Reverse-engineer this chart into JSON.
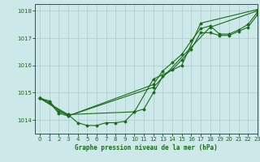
{
  "title": "Graphe pression niveau de la mer (hPa)",
  "background_color": "#cce8e8",
  "grid_color": "#aacccc",
  "line_color": "#1a6b1a",
  "xlim": [
    -0.5,
    23
  ],
  "ylim": [
    1013.5,
    1018.25
  ],
  "yticks": [
    1014,
    1015,
    1016,
    1017,
    1018
  ],
  "xticks": [
    0,
    1,
    2,
    3,
    4,
    5,
    6,
    7,
    8,
    9,
    10,
    11,
    12,
    13,
    14,
    15,
    16,
    17,
    18,
    19,
    20,
    21,
    22,
    23
  ],
  "series": [
    [
      1014.8,
      1014.7,
      1014.3,
      1014.2,
      1013.9,
      1013.8,
      1013.8,
      1013.9,
      1013.9,
      1013.95,
      1014.3,
      1014.4,
      1015.0,
      1015.6,
      1015.85,
      1016.2,
      1016.6,
      1017.2,
      1017.2,
      1017.1,
      1017.1,
      1017.25,
      1017.4,
      1017.85
    ],
    [
      1014.8,
      1014.65,
      1014.25,
      1014.15,
      null,
      null,
      null,
      null,
      null,
      null,
      null,
      null,
      1015.3,
      1015.8,
      1016.1,
      1016.4,
      1016.9,
      1017.35,
      1017.45,
      1017.15,
      1017.15,
      1017.3,
      1017.5,
      1017.95
    ],
    [
      1014.8,
      null,
      null,
      1014.2,
      null,
      null,
      null,
      null,
      null,
      null,
      1014.3,
      null,
      1015.5,
      null,
      null,
      1016.0,
      null,
      1017.55,
      null,
      null,
      null,
      null,
      null,
      1018.05
    ],
    [
      1014.8,
      null,
      null,
      1014.15,
      null,
      null,
      null,
      null,
      null,
      null,
      null,
      null,
      1015.2,
      null,
      null,
      null,
      null,
      null,
      1017.4,
      null,
      null,
      null,
      null,
      1018.0
    ]
  ]
}
